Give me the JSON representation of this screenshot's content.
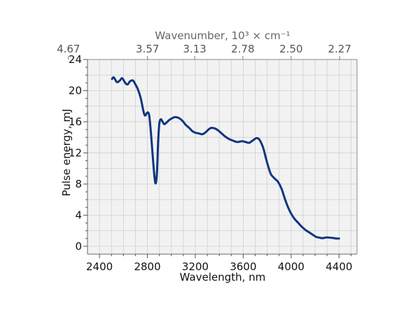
{
  "chart_data": {
    "type": "line",
    "xlabel": "Wavelength, nm",
    "ylabel": "Pulse energy, mJ",
    "top_xlabel": "Wavenumber, 10³ × cm⁻¹",
    "xlim": [
      2300,
      4550
    ],
    "ylim": [
      -1,
      24
    ],
    "x_ticks": [
      2400,
      2800,
      3200,
      3600,
      4000,
      4400
    ],
    "x_tick_labels": [
      "2400",
      "2800",
      "3200",
      "3600",
      "4000",
      "4400"
    ],
    "y_ticks": [
      0,
      4,
      8,
      12,
      16,
      20,
      24
    ],
    "y_tick_labels": [
      "0",
      "4",
      "8",
      "12",
      "16",
      "20",
      "24"
    ],
    "top_ticks": [
      {
        "x": 2141,
        "label": "4.67"
      },
      {
        "x": 2801,
        "label": "3.57"
      },
      {
        "x": 3195,
        "label": "3.13"
      },
      {
        "x": 3597,
        "label": "2.78"
      },
      {
        "x": 4000,
        "label": "2.50"
      },
      {
        "x": 4405,
        "label": "2.27"
      }
    ],
    "grid": true,
    "colors": {
      "series": "#0d3680",
      "plot_bg": "#f2f2f2",
      "grid": "#d0d0d0"
    },
    "series": [
      {
        "x": [
          2505,
          2520,
          2545,
          2570,
          2590,
          2615,
          2635,
          2655,
          2680,
          2700,
          2720,
          2745,
          2765,
          2780,
          2800,
          2815,
          2830,
          2845,
          2860,
          2870,
          2880,
          2890,
          2900,
          2910,
          2920,
          2940,
          2960,
          2980,
          3000,
          3030,
          3060,
          3080,
          3100,
          3120,
          3150,
          3175,
          3200,
          3230,
          3260,
          3290,
          3310,
          3330,
          3350,
          3370,
          3390,
          3420,
          3450,
          3480,
          3510,
          3550,
          3590,
          3620,
          3650,
          3680,
          3710,
          3730,
          3750,
          3770,
          3790,
          3810,
          3830,
          3850,
          3870,
          3890,
          3920,
          3950,
          3975,
          4000,
          4030,
          4060,
          4090,
          4120,
          4150,
          4180,
          4210,
          4240,
          4260,
          4280,
          4300,
          4330,
          4360,
          4380,
          4400
        ],
        "y": [
          21.5,
          21.7,
          21.1,
          21.3,
          21.6,
          21.0,
          20.8,
          21.2,
          21.3,
          20.8,
          20.2,
          19.0,
          17.5,
          16.8,
          17.2,
          16.8,
          14.5,
          11.5,
          8.8,
          8.1,
          9.5,
          13.5,
          15.8,
          16.3,
          16.2,
          15.7,
          15.9,
          16.2,
          16.4,
          16.6,
          16.5,
          16.3,
          16.0,
          15.6,
          15.2,
          14.8,
          14.6,
          14.5,
          14.4,
          14.7,
          15.0,
          15.2,
          15.2,
          15.1,
          14.9,
          14.5,
          14.1,
          13.8,
          13.6,
          13.4,
          13.5,
          13.4,
          13.3,
          13.6,
          13.9,
          13.8,
          13.3,
          12.5,
          11.3,
          10.2,
          9.3,
          8.9,
          8.6,
          8.3,
          7.4,
          6.0,
          5.0,
          4.2,
          3.5,
          3.0,
          2.5,
          2.1,
          1.8,
          1.5,
          1.2,
          1.1,
          1.05,
          1.1,
          1.15,
          1.1,
          1.05,
          1.0,
          1.0
        ]
      }
    ]
  }
}
